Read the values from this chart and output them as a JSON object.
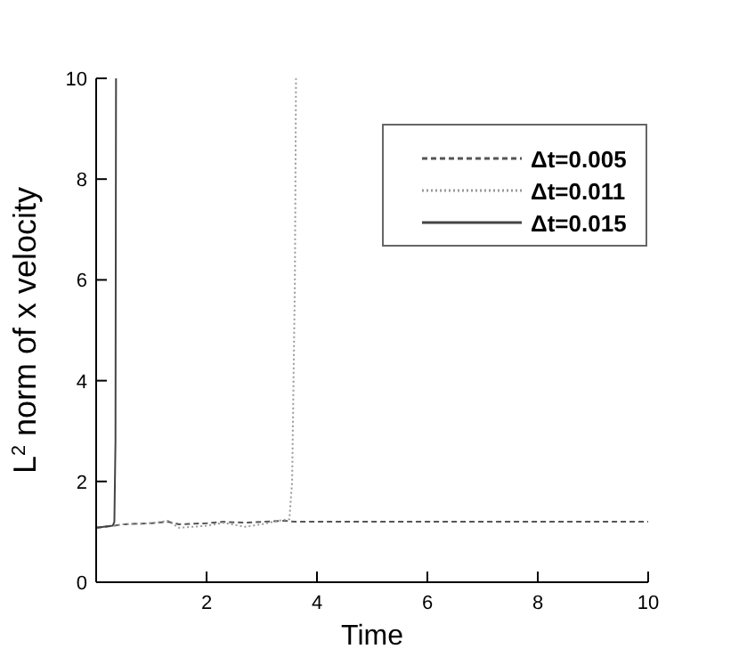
{
  "chart_data": {
    "type": "line",
    "xlabel": "Time",
    "ylabel": "L$^{2}$ norm of x velocity",
    "xlim": [
      0,
      10
    ],
    "ylim": [
      0,
      10
    ],
    "xticks": [
      2,
      4,
      6,
      8,
      10
    ],
    "yticks": [
      0,
      2,
      4,
      6,
      8,
      10
    ],
    "grid": false,
    "legend": "top right",
    "series": [
      {
        "name": "Δt=0.005",
        "color": "#555555",
        "line_style": "dashed",
        "x": [
          0,
          0.3,
          0.5,
          1,
          1.3,
          1.5,
          2,
          2.3,
          2.7,
          3,
          3.4,
          3.6,
          4,
          10
        ],
        "values": [
          1.08,
          1.12,
          1.15,
          1.17,
          1.2,
          1.15,
          1.17,
          1.2,
          1.18,
          1.2,
          1.22,
          1.2,
          1.2,
          1.2
        ]
      },
      {
        "name": "Δt=0.011",
        "color": "#999999",
        "line_style": "dotted",
        "x": [
          0,
          0.3,
          0.5,
          1,
          1.3,
          1.5,
          2,
          2.3,
          2.7,
          3,
          3.3,
          3.5,
          3.55,
          3.6,
          3.62
        ],
        "values": [
          1.08,
          1.12,
          1.15,
          1.17,
          1.22,
          1.08,
          1.12,
          1.18,
          1.1,
          1.15,
          1.22,
          1.25,
          2,
          6,
          10
        ]
      },
      {
        "name": "Δt=0.015",
        "color": "#444444",
        "line_style": "solid",
        "x": [
          0,
          0.3,
          0.33,
          0.35,
          0.36
        ],
        "values": [
          1.08,
          1.12,
          1.2,
          2.8,
          10
        ]
      }
    ]
  }
}
